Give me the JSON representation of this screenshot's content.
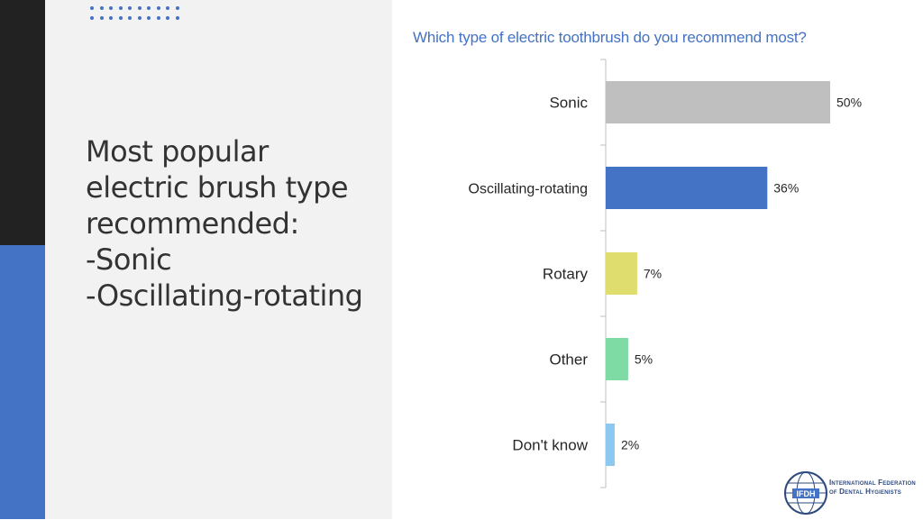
{
  "slide": {
    "headline": "Most popular\nelectric brush type\nrecommended:\n-Sonic\n-Oscillating-rotating",
    "accent_color": "#4472c4"
  },
  "logo": {
    "name_line1": "International Federation",
    "name_line2": "of Dental Hygienists",
    "mark_text": "IFDH",
    "icon": "globe-icon"
  },
  "chart_data": {
    "type": "bar",
    "orientation": "horizontal",
    "title": "Which type of electric toothbrush do you recommend most?",
    "categories": [
      "Sonic",
      "Oscillating-rotating",
      "Rotary",
      "Other",
      "Don't know"
    ],
    "values": [
      50,
      36,
      7,
      5,
      2
    ],
    "value_labels": [
      "50%",
      "36%",
      "7%",
      "5%",
      "2%"
    ],
    "colors": [
      "#bfbfbf",
      "#4472c4",
      "#dedd6e",
      "#7ddba3",
      "#8cc8f0"
    ],
    "unit": "%",
    "xlim": [
      0,
      50
    ],
    "grid": false,
    "legend": "none"
  }
}
